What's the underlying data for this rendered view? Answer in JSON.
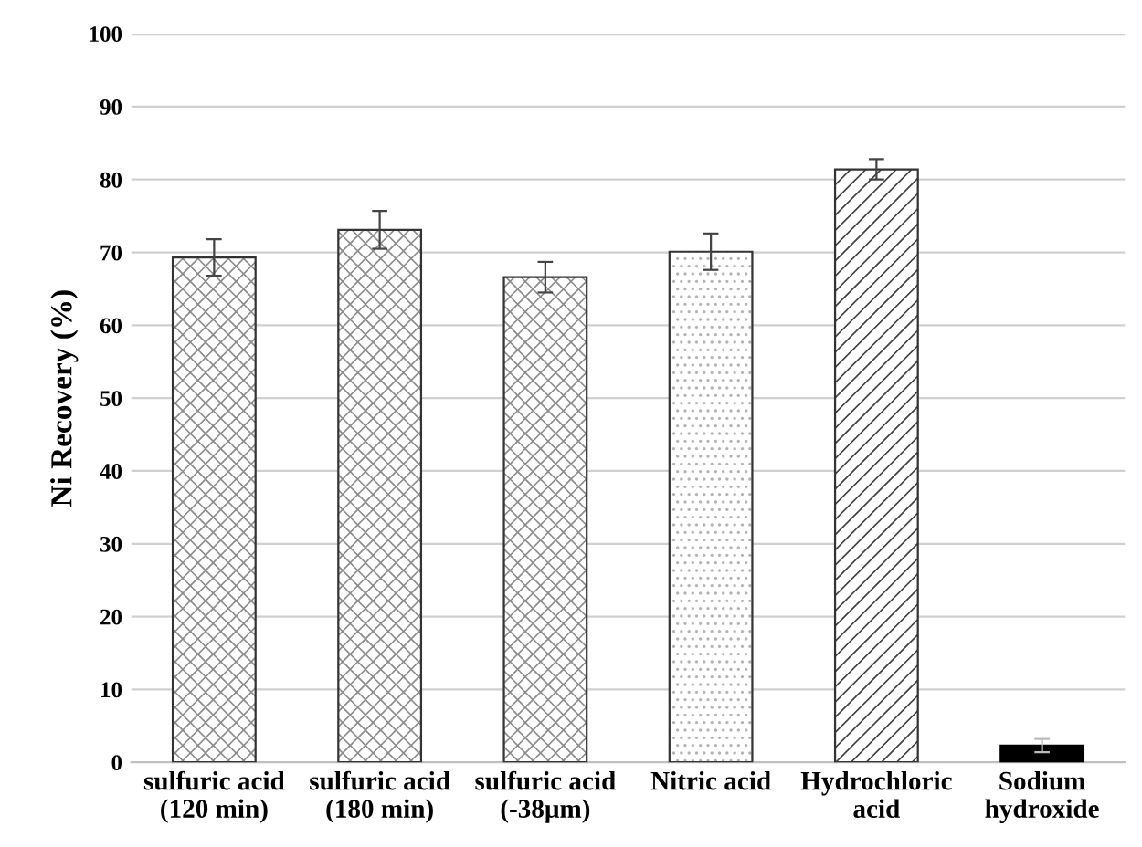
{
  "chart_data": {
    "type": "bar",
    "ylabel": "Ni Recovery (%)",
    "categories": [
      "sulfuric acid\n(120 min)",
      "sulfuric acid\n(180 min)",
      "sulfuric acid\n(-38μm)",
      "Nitric acid",
      "Hydrochloric\nacid",
      "Sodium\nhydroxide"
    ],
    "values": [
      69.3,
      73.1,
      66.6,
      70.1,
      81.4,
      2.3
    ],
    "errors": [
      2.5,
      2.6,
      2.1,
      2.5,
      1.4,
      0.9
    ],
    "colors": [
      "#8c8c8c",
      "#8c8c8c",
      "#8c8c8c",
      "#b4b4b4",
      "#404040",
      "#000000"
    ],
    "ylim": [
      0,
      100
    ],
    "yticks": [
      0,
      10,
      20,
      30,
      40,
      50,
      60,
      70,
      80,
      90,
      100
    ],
    "grid": "y"
  }
}
